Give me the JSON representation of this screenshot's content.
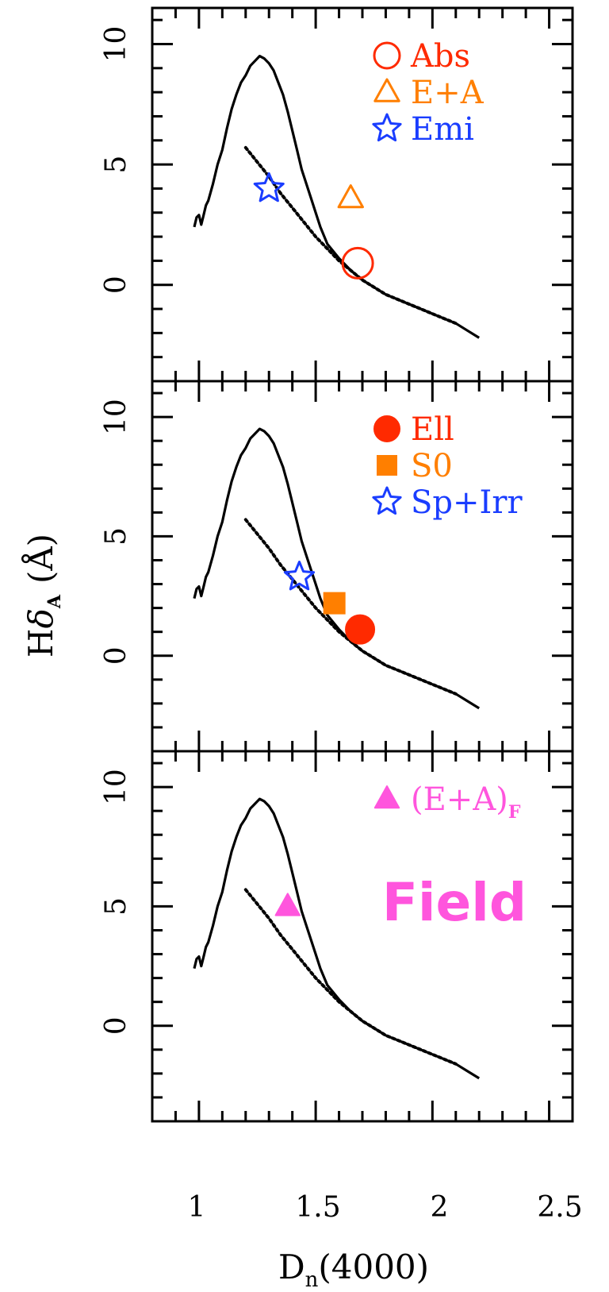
{
  "colors": {
    "abs": "#ff2a00",
    "ea": "#ff7f00",
    "emi": "#1a3dff",
    "field": "#ff55dd",
    "axis": "#000000"
  },
  "axes": {
    "xlabel_main": "D",
    "xlabel_sub": "n",
    "xlabel_tail": "(4000)",
    "ylabel_main": "H",
    "ylabel_delta": "δ",
    "ylabel_sub": "A",
    "ylabel_tail": "(Å)",
    "x_ticks": [
      "1",
      "1.5",
      "2",
      "2.5"
    ],
    "y_ticks": [
      "10",
      "5",
      "0"
    ]
  },
  "chart_data": [
    {
      "type": "scatter",
      "panel": "top",
      "xlim": [
        0.8,
        2.6
      ],
      "ylim": [
        -4.0,
        11.5
      ],
      "legend_position": "top-right",
      "series": [
        {
          "name": "Abs",
          "marker": "open-circle",
          "color": "#ff2a00",
          "x": [
            1.68
          ],
          "y": [
            0.9
          ]
        },
        {
          "name": "E+A",
          "marker": "open-triangle",
          "color": "#ff7f00",
          "x": [
            1.65
          ],
          "y": [
            3.6
          ]
        },
        {
          "name": "Emi",
          "marker": "open-star",
          "color": "#1a3dff",
          "x": [
            1.3
          ],
          "y": [
            4.0
          ]
        }
      ]
    },
    {
      "type": "scatter",
      "panel": "middle",
      "xlim": [
        0.8,
        2.6
      ],
      "ylim": [
        -4.0,
        11.5
      ],
      "legend_position": "top-right",
      "series": [
        {
          "name": "Ell",
          "marker": "filled-circle",
          "color": "#ff2a00",
          "x": [
            1.69
          ],
          "y": [
            1.1
          ]
        },
        {
          "name": "S0",
          "marker": "filled-square",
          "color": "#ff7f00",
          "x": [
            1.58
          ],
          "y": [
            2.2
          ]
        },
        {
          "name": "Sp+Irr",
          "marker": "open-star",
          "color": "#1a3dff",
          "x": [
            1.43
          ],
          "y": [
            3.3
          ]
        }
      ]
    },
    {
      "type": "scatter",
      "panel": "bottom",
      "xlim": [
        0.8,
        2.6
      ],
      "ylim": [
        -4.0,
        11.5
      ],
      "legend_position": "top-right",
      "annotation": "Field",
      "series": [
        {
          "name": "(E+A)",
          "name_sub": "F",
          "marker": "filled-triangle",
          "color": "#ff55dd",
          "x": [
            1.38
          ],
          "y": [
            5.0
          ]
        }
      ]
    }
  ],
  "model_curves": {
    "burst_track": {
      "x": [
        0.98,
        0.99,
        1.0,
        1.01,
        1.02,
        1.03,
        1.04,
        1.06,
        1.08,
        1.1,
        1.12,
        1.14,
        1.16,
        1.18,
        1.2,
        1.22,
        1.24,
        1.26,
        1.28,
        1.3,
        1.32,
        1.34,
        1.36,
        1.38,
        1.4,
        1.42,
        1.44,
        1.46,
        1.48,
        1.5,
        1.52,
        1.55,
        1.6,
        1.65,
        1.7,
        1.75,
        1.8,
        1.85,
        1.9,
        1.95,
        2.0,
        2.05,
        2.1,
        2.15,
        2.2
      ],
      "y": [
        2.4,
        2.8,
        2.9,
        2.5,
        2.9,
        3.3,
        3.5,
        4.2,
        5.0,
        5.6,
        6.5,
        7.3,
        7.9,
        8.4,
        8.7,
        9.1,
        9.3,
        9.5,
        9.4,
        9.2,
        8.9,
        8.4,
        7.9,
        7.2,
        6.4,
        5.6,
        4.8,
        4.2,
        3.6,
        3.0,
        2.4,
        1.7,
        1.1,
        0.6,
        0.2,
        -0.1,
        -0.4,
        -0.6,
        -0.8,
        -1.0,
        -1.2,
        -1.4,
        -1.6,
        -1.9,
        -2.2
      ]
    },
    "continuous_track": {
      "x": [
        1.2,
        1.25,
        1.3,
        1.35,
        1.4,
        1.45,
        1.5,
        1.55,
        1.6,
        1.65,
        1.7,
        1.75,
        1.8,
        1.85,
        1.9,
        1.95,
        2.0,
        2.05,
        2.1
      ],
      "y": [
        5.7,
        5.1,
        4.5,
        3.8,
        3.2,
        2.6,
        2.0,
        1.5,
        1.0,
        0.6,
        0.2,
        -0.1,
        -0.4,
        -0.6,
        -0.8,
        -1.0,
        -1.2,
        -1.4,
        -1.6
      ]
    }
  }
}
